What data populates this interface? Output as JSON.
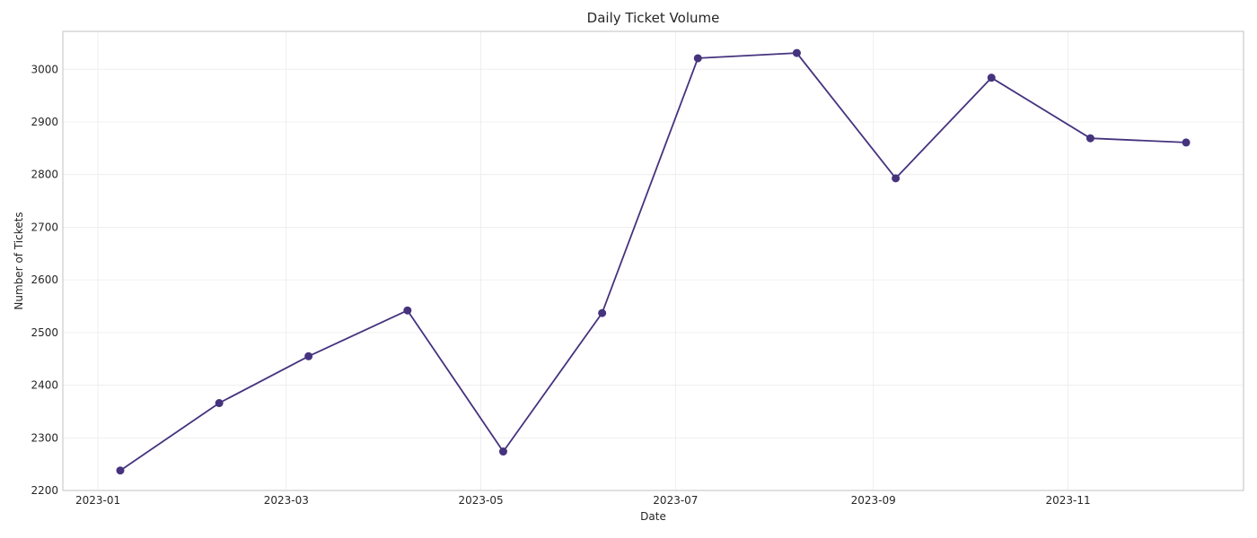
{
  "chart_data": {
    "type": "line",
    "title": "Daily Ticket Volume",
    "xlabel": "Date",
    "ylabel": "Number of Tickets",
    "x": [
      "2023-01-08",
      "2023-02-08",
      "2023-03-08",
      "2023-04-08",
      "2023-05-08",
      "2023-06-08",
      "2023-07-08",
      "2023-08-08",
      "2023-09-08",
      "2023-10-08",
      "2023-11-08",
      "2023-12-08"
    ],
    "series": [
      {
        "values": [
          2238,
          2366,
          2455,
          2542,
          2274,
          2537,
          3021,
          3031,
          2793,
          2984,
          2869,
          2861
        ]
      }
    ],
    "ylim": [
      2200,
      3072
    ],
    "xlim": [
      "2022-12-21",
      "2023-12-26"
    ],
    "x_ticks": [
      "2023-01",
      "2023-03",
      "2023-05",
      "2023-07",
      "2023-09",
      "2023-11"
    ],
    "y_ticks": [
      2200,
      2300,
      2400,
      2500,
      2600,
      2700,
      2800,
      2900,
      3000
    ],
    "grid": true,
    "line_color": "#46337e",
    "grid_color": "#ebebeb",
    "spine_color": "#cccccc"
  }
}
